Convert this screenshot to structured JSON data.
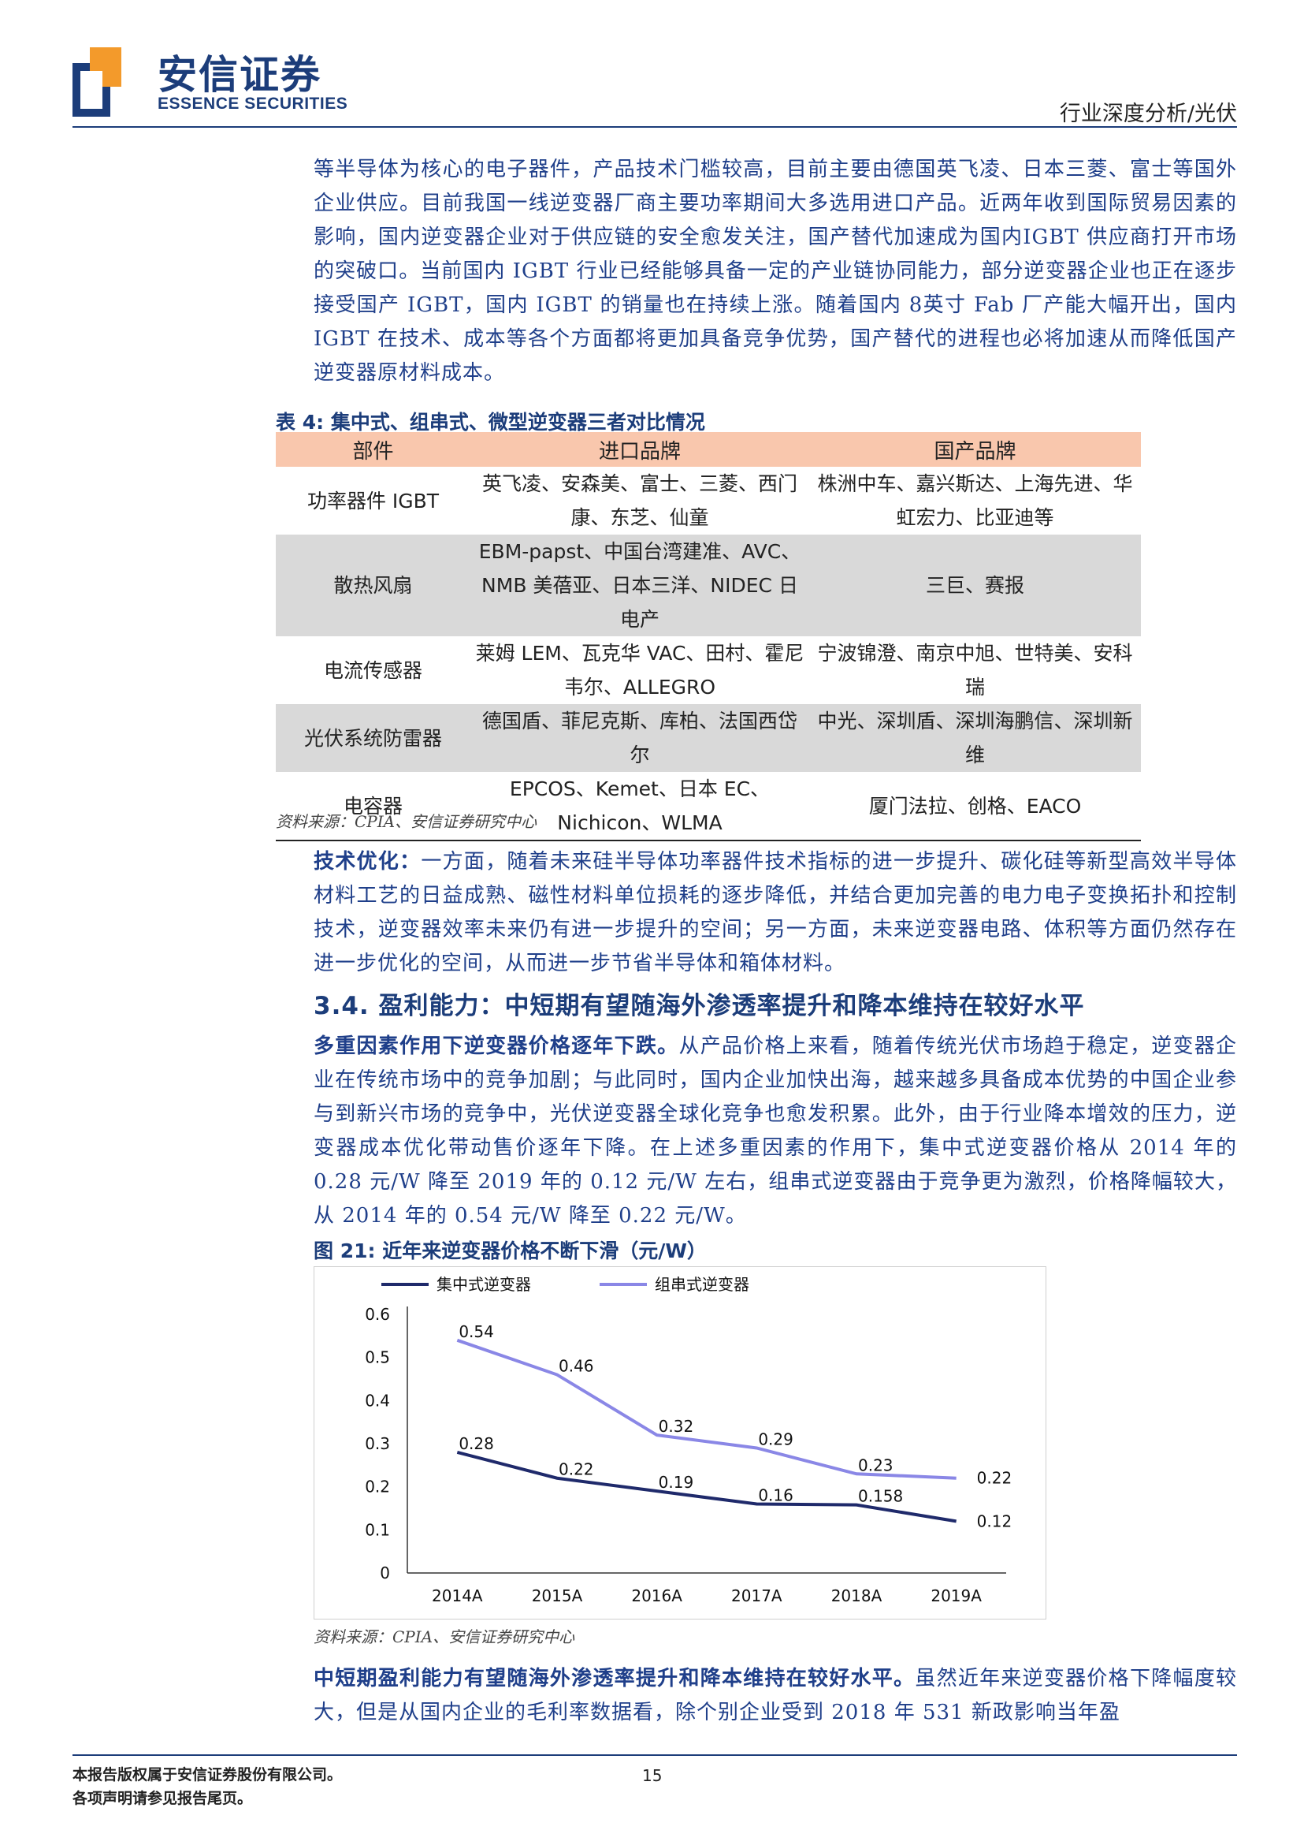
{
  "header": {
    "logo_cn": "安信证券",
    "logo_en": "ESSENCE SECURITIES",
    "tag": "行业深度分析/光伏"
  },
  "intro_paragraph": "等半导体为核心的电子器件，产品技术门槛较高，目前主要由德国英飞凌、日本三菱、富士等国外企业供应。目前我国一线逆变器厂商主要功率期间大多选用进口产品。近两年收到国际贸易因素的影响，国内逆变器企业对于供应链的安全愈发关注，国产替代加速成为国内IGBT 供应商打开市场的突破口。当前国内 IGBT 行业已经能够具备一定的产业链协同能力，部分逆变器企业也正在逐步接受国产 IGBT，国内 IGBT 的销量也在持续上涨。随着国内 8英寸 Fab 厂产能大幅开出，国内 IGBT 在技术、成本等各个方面都将更加具备竞争优势，国产替代的进程也必将加速从而降低国产逆变器原材料成本。",
  "table4": {
    "caption_num": "表 4:",
    "caption_text": "集中式、组串式、微型逆变器三者对比情况",
    "headers": [
      "部件",
      "进口品牌",
      "国产品牌"
    ],
    "rows": [
      [
        "功率器件 IGBT",
        "英飞凌、安森美、富士、三菱、西门康、东芝、仙童",
        "株洲中车、嘉兴斯达、上海先进、华虹宏力、比亚迪等"
      ],
      [
        "散热风扇",
        "EBM-papst、中国台湾建准、AVC、NMB 美蓓亚、日本三洋、NIDEC 日电产",
        "三巨、赛报"
      ],
      [
        "电流传感器",
        "莱姆 LEM、瓦克华 VAC、田村、霍尼韦尔、ALLEGRO",
        "宁波锦澄、南京中旭、世特美、安科瑞"
      ],
      [
        "光伏系统防雷器",
        "德国盾、菲尼克斯、库柏、法国西岱尔",
        "中光、深圳盾、深圳海鹏信、深圳新维"
      ],
      [
        "电容器",
        "EPCOS、Kemet、日本 EC、Nichicon、WLMA",
        "厦门法拉、创格、EACO"
      ]
    ],
    "source": "资料来源：CPIA、安信证券研究中心"
  },
  "tech_paragraph": {
    "lead": "技术优化：",
    "body": "一方面，随着未来硅半导体功率器件技术指标的进一步提升、碳化硅等新型高效半导体材料工艺的日益成熟、磁性材料单位损耗的逐步降低，并结合更加完善的电力电子变换拓扑和控制技术，逆变器效率未来仍有进一步提升的空间；另一方面，未来逆变器电路、体积等方面仍然存在进一步优化的空间，从而进一步节省半导体和箱体材料。"
  },
  "section": {
    "num": "3.4.",
    "title": "盈利能力：中短期有望随海外渗透率提升和降本维持在较好水平"
  },
  "price_paragraph": {
    "lead": "多重因素作用下逆变器价格逐年下跌。",
    "body": "从产品价格上来看，随着传统光伏市场趋于稳定，逆变器企业在传统市场中的竞争加剧；与此同时，国内企业加快出海，越来越多具备成本优势的中国企业参与到新兴市场的竞争中，光伏逆变器全球化竞争也愈发积累。此外，由于行业降本增效的压力，逆变器成本优化带动售价逐年下降。在上述多重因素的作用下，集中式逆变器价格从 2014 年的 0.28 元/W 降至 2019 年的 0.12 元/W 左右，组串式逆变器由于竞争更为激烈，价格降幅较大，从 2014 年的 0.54 元/W 降至 0.22 元/W。"
  },
  "figure21": {
    "caption_num": "图 21:",
    "caption_text": "近年来逆变器价格不断下滑（元/W）",
    "source": "资料来源：CPIA、安信证券研究中心"
  },
  "chart_data": {
    "type": "line",
    "categories": [
      "2014A",
      "2015A",
      "2016A",
      "2017A",
      "2018A",
      "2019A"
    ],
    "series": [
      {
        "name": "集中式逆变器",
        "values": [
          0.28,
          0.22,
          0.19,
          0.16,
          0.158,
          0.12
        ],
        "labels": [
          "0.28",
          "0.22",
          "0.19",
          "0.16",
          "0.158",
          "0.12"
        ],
        "color": "#1f2a6b"
      },
      {
        "name": "组串式逆变器",
        "values": [
          0.54,
          0.46,
          0.32,
          0.29,
          0.23,
          0.22
        ],
        "labels": [
          "0.54",
          "0.46",
          "0.32",
          "0.29",
          "0.23",
          "0.22"
        ],
        "color": "#8a87e6"
      }
    ],
    "y_ticks": [
      "0",
      "0.1",
      "0.2",
      "0.3",
      "0.4",
      "0.5",
      "0.6"
    ],
    "ylim": [
      0,
      0.6
    ],
    "grid": false,
    "legend": "top"
  },
  "closing_paragraph": {
    "lead": "中短期盈利能力有望随海外渗透率提升和降本维持在较好水平。",
    "body": "虽然近年来逆变器价格下降幅度较大，但是从国内企业的毛利率数据看，除个别企业受到 2018 年 531 新政影响当年盈"
  },
  "footer": {
    "line1": "本报告版权属于安信证券股份有限公司。",
    "line2": "各项声明请参见报告尾页。",
    "page": "15"
  }
}
